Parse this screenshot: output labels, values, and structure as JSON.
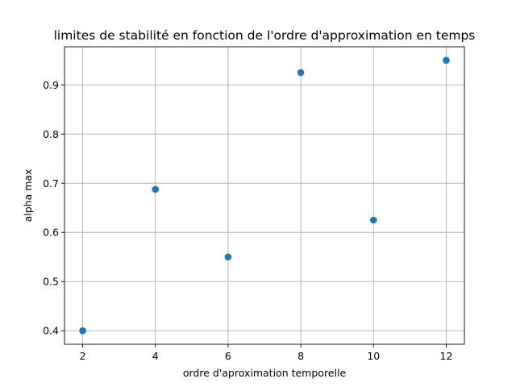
{
  "chart_data": {
    "type": "scatter",
    "title": "limites de stabilité en fonction de l'ordre d'approximation en temps",
    "xlabel": "ordre d'aproximation temporelle",
    "ylabel": "alpha max",
    "x": [
      2,
      4,
      6,
      8,
      10,
      12
    ],
    "y": [
      0.4,
      0.6875,
      0.55,
      0.925,
      0.625,
      0.95
    ],
    "xlim": [
      1.5,
      12.5
    ],
    "ylim": [
      0.3725,
      0.9775
    ],
    "xticks": [
      2,
      4,
      6,
      8,
      10,
      12
    ],
    "xtick_labels": [
      "2",
      "4",
      "6",
      "8",
      "10",
      "12"
    ],
    "yticks": [
      0.4,
      0.5,
      0.6,
      0.7,
      0.8,
      0.9
    ],
    "ytick_labels": [
      "0.4",
      "0.5",
      "0.6",
      "0.7",
      "0.8",
      "0.9"
    ],
    "grid": true,
    "marker_color": "#1f77b4"
  }
}
